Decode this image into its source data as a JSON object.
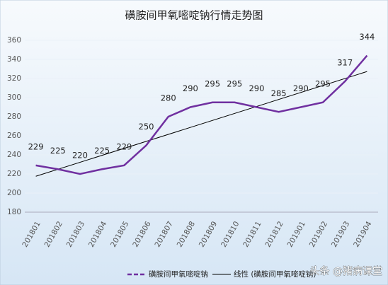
{
  "chart_data": {
    "type": "line",
    "title": "磺胺间甲氧嘧啶钠行情走势图",
    "categories": [
      "201801",
      "201802",
      "201803",
      "201804",
      "201805",
      "201806",
      "201807",
      "201808",
      "201809",
      "201810",
      "201811",
      "201812",
      "201901",
      "201902",
      "201903",
      "201904"
    ],
    "series": [
      {
        "name": "磺胺间甲氧嘧啶钠",
        "color": "#7030a0",
        "values": [
          229,
          225,
          220,
          225,
          229,
          250,
          280,
          290,
          295,
          295,
          290,
          285,
          290,
          295,
          317,
          344
        ]
      }
    ],
    "trendline": {
      "name": "线性 (磺胺间甲氧嘧啶钠)",
      "color": "#000000"
    },
    "ylim": [
      180,
      360
    ],
    "yticks": [
      180,
      200,
      220,
      240,
      260,
      280,
      300,
      320,
      340,
      360
    ],
    "grid": true,
    "legend": "bottom",
    "watermark": "头条 @猪病课堂"
  }
}
